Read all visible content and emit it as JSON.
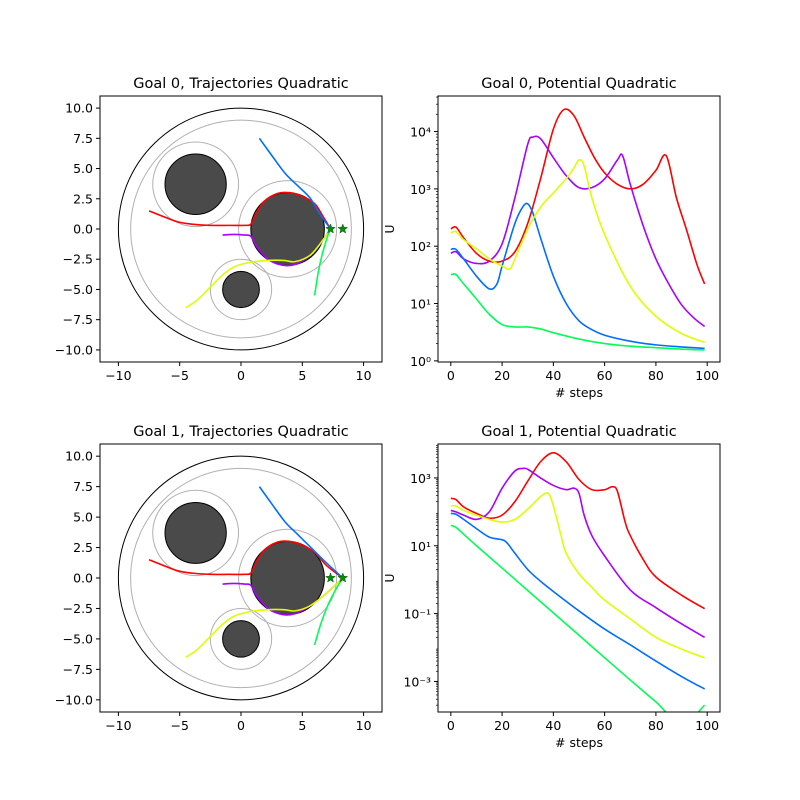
{
  "chart_data": [
    {
      "type": "line",
      "title": "Goal 0, Trajectories Quadratic",
      "xlim": [
        -11.5,
        11.5
      ],
      "ylim": [
        -11.0,
        11.0
      ],
      "xticks": [
        -10,
        -5,
        0,
        5,
        10
      ],
      "yticks": [
        -10.0,
        -7.5,
        -5.0,
        -2.5,
        0.0,
        2.5,
        5.0,
        7.5,
        10.0
      ],
      "xtick_labels": [
        "−10",
        "−5",
        "0",
        "5",
        "10"
      ],
      "ytick_labels": [
        "−10.0",
        "−7.5",
        "−5.0",
        "−2.5",
        "0.0",
        "2.5",
        "5.0",
        "7.5",
        "10.0"
      ],
      "boundary": {
        "center": [
          0,
          0
        ],
        "radius": 10,
        "inner_radius": 9.0
      },
      "obstacles": [
        {
          "center": [
            -3.7,
            3.7
          ],
          "radius": 2.5,
          "influence_radius": 3.5
        },
        {
          "center": [
            3.8,
            0
          ],
          "radius": 3.0,
          "influence_radius": 4.0
        },
        {
          "center": [
            0,
            -5
          ],
          "radius": 1.5,
          "influence_radius": 2.5
        }
      ],
      "goals": [
        [
          7.3,
          0.0
        ],
        [
          8.3,
          0.0
        ]
      ],
      "series": [
        {
          "color": "#ff0000",
          "points": [
            [
              -7.5,
              1.5
            ],
            [
              -6.5,
              1.1
            ],
            [
              -5.2,
              0.6
            ],
            [
              -4,
              0.4
            ],
            [
              -2.5,
              0.3
            ],
            [
              -1,
              0.3
            ],
            [
              0.3,
              0.3
            ],
            [
              0.8,
              0.4
            ],
            [
              1.2,
              1.2
            ],
            [
              1.9,
              2.3
            ],
            [
              3,
              2.95
            ],
            [
              4,
              3.0
            ],
            [
              5,
              2.7
            ],
            [
              6,
              2.1
            ],
            [
              6.6,
              1.2
            ],
            [
              7.3,
              0
            ]
          ]
        },
        {
          "color": "#aa00ff",
          "points": [
            [
              -1.5,
              -0.5
            ],
            [
              -0.6,
              -0.45
            ],
            [
              0.3,
              -0.5
            ],
            [
              0.8,
              -0.6
            ],
            [
              1.3,
              -1.5
            ],
            [
              2.2,
              -2.5
            ],
            [
              3.4,
              -3.0
            ],
            [
              4.5,
              -2.9
            ],
            [
              5.6,
              -2.2
            ],
            [
              6.4,
              -1.3
            ],
            [
              7.3,
              0
            ]
          ]
        },
        {
          "color": "#006eff",
          "points": [
            [
              1.5,
              7.5
            ],
            [
              2.5,
              6.1
            ],
            [
              3.6,
              4.6
            ],
            [
              4.6,
              3.6
            ],
            [
              5.6,
              2.6
            ],
            [
              6.4,
              1.3
            ],
            [
              7.3,
              0
            ]
          ]
        },
        {
          "color": "#ddff00",
          "points": [
            [
              -4.5,
              -6.5
            ],
            [
              -3.6,
              -5.9
            ],
            [
              -2.6,
              -4.9
            ],
            [
              -1.5,
              -3.8
            ],
            [
              -0.5,
              -3.1
            ],
            [
              0.8,
              -2.75
            ],
            [
              2.2,
              -2.6
            ],
            [
              3.5,
              -2.6
            ],
            [
              4.4,
              -2.7
            ],
            [
              5.6,
              -2.2
            ],
            [
              6.4,
              -1.3
            ],
            [
              7.3,
              0
            ]
          ]
        },
        {
          "color": "#00ff55",
          "points": [
            [
              6.0,
              -5.5
            ],
            [
              6.3,
              -3.6
            ],
            [
              6.6,
              -2.2
            ],
            [
              7.0,
              -0.8
            ],
            [
              7.3,
              0
            ]
          ]
        }
      ]
    },
    {
      "type": "line",
      "title": "Goal 0, Potential Quadratic",
      "xlabel": "# steps",
      "ylabel": "U",
      "yscale": "log",
      "xlim": [
        -5,
        105
      ],
      "ylim_log10": [
        -0.02,
        4.62
      ],
      "xticks": [
        0,
        20,
        40,
        60,
        80,
        100
      ],
      "xtick_labels": [
        "0",
        "20",
        "40",
        "60",
        "80",
        "100"
      ],
      "yticks_log10": [
        0,
        1,
        2,
        3,
        4
      ],
      "ytick_labels": [
        "10⁰",
        "10¹",
        "10²",
        "10³",
        "10⁴"
      ],
      "series": [
        {
          "color": "#ff0000",
          "x": [
            0,
            2,
            5,
            10,
            15,
            20,
            25,
            30,
            35,
            40,
            44,
            48,
            52,
            56,
            60,
            65,
            70,
            75,
            80,
            84,
            88,
            92,
            96,
            99
          ],
          "y": [
            200,
            215,
            140,
            75,
            55,
            55,
            80,
            250,
            1500,
            11000,
            24000,
            19000,
            8000,
            3500,
            1900,
            1200,
            1000,
            1200,
            2100,
            3800,
            700,
            190,
            48,
            22
          ]
        },
        {
          "color": "#aa00ff",
          "x": [
            0,
            2,
            5,
            10,
            15,
            20,
            25,
            30,
            32,
            35,
            40,
            45,
            50,
            55,
            60,
            65,
            67,
            70,
            75,
            80,
            85,
            90,
            95,
            99
          ],
          "y": [
            75,
            80,
            60,
            50,
            55,
            110,
            700,
            6000,
            8000,
            7500,
            3500,
            1700,
            1050,
            1050,
            1500,
            3200,
            3800,
            1200,
            230,
            60,
            22,
            9.5,
            5.5,
            4.0
          ]
        },
        {
          "color": "#006eff",
          "x": [
            0,
            2,
            5,
            10,
            15,
            18,
            20,
            25,
            28,
            30,
            32,
            35,
            40,
            45,
            50,
            55,
            60,
            70,
            80,
            90,
            99
          ],
          "y": [
            88,
            88,
            60,
            30,
            18,
            22,
            45,
            250,
            480,
            550,
            380,
            140,
            30,
            10,
            5,
            3.5,
            2.8,
            2.2,
            1.9,
            1.75,
            1.65
          ]
        },
        {
          "color": "#ddff00",
          "x": [
            0,
            2,
            5,
            10,
            15,
            20,
            23,
            25,
            30,
            35,
            40,
            45,
            48,
            50,
            52,
            55,
            60,
            70,
            80,
            90,
            99
          ],
          "y": [
            170,
            180,
            130,
            90,
            60,
            45,
            40,
            60,
            200,
            480,
            850,
            1500,
            2300,
            3200,
            2500,
            700,
            160,
            20,
            6,
            3,
            2.1
          ]
        },
        {
          "color": "#00ff55",
          "x": [
            0,
            2,
            5,
            10,
            15,
            20,
            25,
            30,
            35,
            40,
            50,
            60,
            70,
            80,
            90,
            99
          ],
          "y": [
            32,
            32,
            22,
            12,
            6.5,
            4.3,
            3.9,
            3.9,
            3.6,
            3.1,
            2.4,
            2.0,
            1.8,
            1.7,
            1.6,
            1.55
          ]
        }
      ]
    },
    {
      "type": "line",
      "title": "Goal 1, Trajectories Quadratic",
      "xlim": [
        -11.5,
        11.5
      ],
      "ylim": [
        -11.0,
        11.0
      ],
      "xticks": [
        -10,
        -5,
        0,
        5,
        10
      ],
      "yticks": [
        -10.0,
        -7.5,
        -5.0,
        -2.5,
        0.0,
        2.5,
        5.0,
        7.5,
        10.0
      ],
      "xtick_labels": [
        "−10",
        "−5",
        "0",
        "5",
        "10"
      ],
      "ytick_labels": [
        "−10.0",
        "−7.5",
        "−5.0",
        "−2.5",
        "0.0",
        "2.5",
        "5.0",
        "7.5",
        "10.0"
      ],
      "boundary": {
        "center": [
          0,
          0
        ],
        "radius": 10,
        "inner_radius": 9.0
      },
      "obstacles": [
        {
          "center": [
            -3.7,
            3.7
          ],
          "radius": 2.5,
          "influence_radius": 3.5
        },
        {
          "center": [
            3.8,
            0
          ],
          "radius": 3.0,
          "influence_radius": 4.0
        },
        {
          "center": [
            0,
            -5
          ],
          "radius": 1.5,
          "influence_radius": 2.5
        }
      ],
      "goals": [
        [
          7.3,
          0.0
        ],
        [
          8.3,
          0.0
        ]
      ],
      "series": [
        {
          "color": "#ff0000",
          "points": [
            [
              -7.5,
              1.5
            ],
            [
              -6.5,
              1.1
            ],
            [
              -5.2,
              0.6
            ],
            [
              -4,
              0.4
            ],
            [
              -2.5,
              0.3
            ],
            [
              -1,
              0.3
            ],
            [
              0.3,
              0.3
            ],
            [
              0.8,
              0.4
            ],
            [
              1.2,
              1.2
            ],
            [
              1.9,
              2.3
            ],
            [
              3,
              2.95
            ],
            [
              4,
              3.0
            ],
            [
              5,
              2.7
            ],
            [
              6,
              2.1
            ],
            [
              7,
              1.0
            ],
            [
              8.3,
              0
            ]
          ]
        },
        {
          "color": "#aa00ff",
          "points": [
            [
              -1.5,
              -0.5
            ],
            [
              -0.6,
              -0.45
            ],
            [
              0.3,
              -0.5
            ],
            [
              0.8,
              -0.6
            ],
            [
              1.3,
              -1.5
            ],
            [
              2.2,
              -2.5
            ],
            [
              3.4,
              -3.0
            ],
            [
              4.5,
              -2.9
            ],
            [
              5.6,
              -2.3
            ],
            [
              6.8,
              -1.4
            ],
            [
              8.3,
              0
            ]
          ]
        },
        {
          "color": "#006eff",
          "points": [
            [
              1.5,
              7.5
            ],
            [
              2.5,
              6.1
            ],
            [
              3.6,
              4.6
            ],
            [
              4.6,
              3.6
            ],
            [
              5.6,
              2.6
            ],
            [
              6.8,
              1.4
            ],
            [
              8.3,
              0
            ]
          ]
        },
        {
          "color": "#ddff00",
          "points": [
            [
              -4.5,
              -6.5
            ],
            [
              -3.6,
              -5.9
            ],
            [
              -2.6,
              -4.9
            ],
            [
              -1.5,
              -3.8
            ],
            [
              -0.5,
              -3.1
            ],
            [
              0.8,
              -2.75
            ],
            [
              2.2,
              -2.6
            ],
            [
              3.5,
              -2.6
            ],
            [
              4.4,
              -2.7
            ],
            [
              5.6,
              -2.3
            ],
            [
              6.8,
              -1.4
            ],
            [
              8.3,
              0
            ]
          ]
        },
        {
          "color": "#00ff55",
          "points": [
            [
              6.0,
              -5.5
            ],
            [
              6.5,
              -3.8
            ],
            [
              7.1,
              -2.2
            ],
            [
              7.7,
              -1.0
            ],
            [
              8.3,
              0
            ]
          ]
        }
      ]
    },
    {
      "type": "line",
      "title": "Goal 1, Potential Quadratic",
      "xlabel": "# steps",
      "ylabel": "U",
      "yscale": "log",
      "xlim": [
        -5,
        105
      ],
      "ylim_log10": [
        -3.9,
        4.0
      ],
      "xticks": [
        0,
        20,
        40,
        60,
        80,
        100
      ],
      "xtick_labels": [
        "0",
        "20",
        "40",
        "60",
        "80",
        "100"
      ],
      "yticks_log10": [
        -3,
        -1,
        1,
        3
      ],
      "ytick_labels": [
        "10⁻³",
        "10⁻¹",
        "10¹",
        "10³"
      ],
      "series": [
        {
          "color": "#ff0000",
          "x": [
            0,
            2,
            5,
            10,
            15,
            20,
            25,
            30,
            35,
            40,
            45,
            50,
            55,
            60,
            63,
            65,
            68,
            70,
            75,
            80,
            90,
            99
          ],
          "y": [
            250,
            230,
            140,
            90,
            65,
            80,
            200,
            800,
            3000,
            5500,
            3000,
            900,
            450,
            450,
            550,
            400,
            50,
            20,
            4,
            1.2,
            0.35,
            0.14
          ]
        },
        {
          "color": "#aa00ff",
          "x": [
            0,
            2,
            5,
            10,
            15,
            20,
            25,
            28,
            30,
            35,
            40,
            45,
            48,
            50,
            52,
            55,
            60,
            70,
            80,
            90,
            99
          ],
          "y": [
            110,
            100,
            80,
            60,
            100,
            500,
            1600,
            1900,
            1800,
            1000,
            600,
            450,
            500,
            350,
            80,
            20,
            5,
            0.5,
            0.15,
            0.05,
            0.02
          ]
        },
        {
          "color": "#006eff",
          "x": [
            0,
            2,
            5,
            10,
            15,
            20,
            22,
            25,
            30,
            35,
            40,
            50,
            60,
            70,
            80,
            90,
            99
          ],
          "y": [
            90,
            85,
            60,
            32,
            18,
            15,
            12,
            6,
            2.0,
            0.9,
            0.45,
            0.12,
            0.035,
            0.012,
            0.004,
            0.0014,
            0.0006
          ]
        },
        {
          "color": "#ddff00",
          "x": [
            0,
            2,
            5,
            10,
            15,
            20,
            25,
            30,
            35,
            38,
            40,
            43,
            45,
            50,
            55,
            60,
            70,
            80,
            90,
            99
          ],
          "y": [
            150,
            150,
            110,
            80,
            60,
            50,
            60,
            120,
            280,
            350,
            150,
            20,
            6,
            1.5,
            0.6,
            0.25,
            0.07,
            0.02,
            0.009,
            0.005
          ]
        },
        {
          "color": "#00ff55",
          "x": [
            0,
            2,
            5,
            10,
            20,
            30,
            40,
            50,
            60,
            70,
            80,
            90,
            99
          ],
          "y": [
            40,
            35,
            22,
            10,
            2.2,
            0.48,
            0.105,
            0.023,
            0.005,
            0.0011,
            0.00025,
            5.48e-05,
            0.0002
          ]
        }
      ]
    }
  ]
}
